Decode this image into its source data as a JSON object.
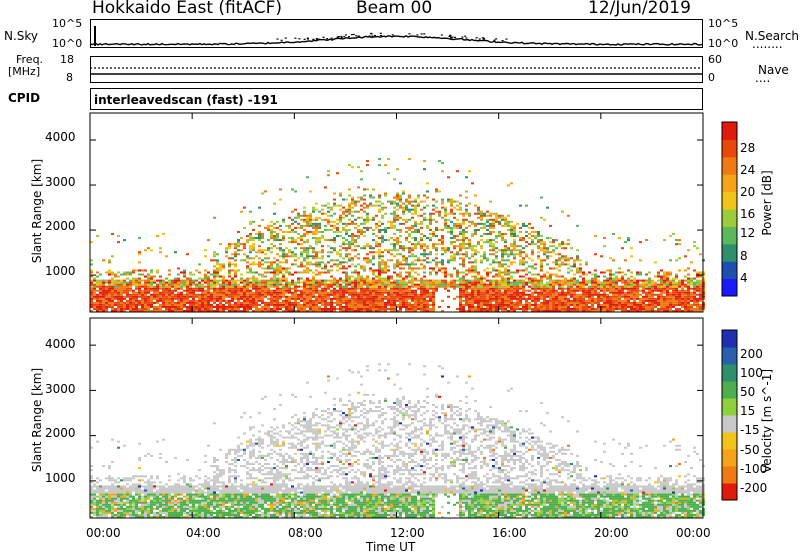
{
  "header": {
    "station": "Hokkaido East (fitACF)",
    "beam": "Beam 00",
    "date": "12/Jun/2019"
  },
  "sky_panel": {
    "left_label": "N.Sky",
    "left_ticks": [
      "10^5",
      "10^0"
    ],
    "right_ticks": [
      "10^5",
      "10^0"
    ],
    "right_label": "N.Search",
    "right_legend_line": "........"
  },
  "freq_panel": {
    "label_line1": "Freq.",
    "label_line2": "[MHz]",
    "left_ticks": [
      "18",
      "8"
    ],
    "right_ticks": [
      "60",
      "0"
    ],
    "right_label": "Nave",
    "right_legend_line": "...."
  },
  "cpid_panel": {
    "label": "CPID",
    "text": "interleavedscan (fast) -191"
  },
  "chart_data": [
    {
      "type": "heatmap",
      "name": "power",
      "ylabel": "Slant Range [km]",
      "ylim": [
        180,
        4600
      ],
      "yticks": [
        "1000",
        "2000",
        "3000",
        "4000"
      ],
      "ytick_values": [
        1000,
        2000,
        3000,
        4000
      ],
      "colorbar_label": "Power [dB]",
      "colorbar_ticks": [
        "4",
        "8",
        "12",
        "16",
        "20",
        "24",
        "28"
      ],
      "colorbar_colors": [
        "#1a1aff",
        "#1e4fb0",
        "#2e8f6b",
        "#5cb85c",
        "#9ccc3a",
        "#f2c319",
        "#f5a419",
        "#ef7a13",
        "#e8480c",
        "#e01b0b"
      ]
    },
    {
      "type": "heatmap",
      "name": "velocity",
      "ylabel": "Slant Range [km]",
      "ylim": [
        180,
        4600
      ],
      "yticks": [
        "1000",
        "2000",
        "3000",
        "4000"
      ],
      "ytick_values": [
        1000,
        2000,
        3000,
        4000
      ],
      "colorbar_label": "Velocity [m s^-1]",
      "colorbar_ticks": [
        "200",
        "100",
        "50",
        "15",
        "-15",
        "-50",
        "-100",
        "-200"
      ],
      "colorbar_colors": [
        "#1f2fb0",
        "#2a5fae",
        "#2e8f6b",
        "#4cae4c",
        "#8ed13c",
        "#c9c9c9",
        "#f2c319",
        "#f5a419",
        "#ef7a13",
        "#e01b0b"
      ]
    }
  ],
  "xaxis": {
    "label": "Time UT",
    "ticks": [
      "00:00",
      "04:00",
      "08:00",
      "12:00",
      "16:00",
      "20:00",
      "00:00"
    ]
  }
}
